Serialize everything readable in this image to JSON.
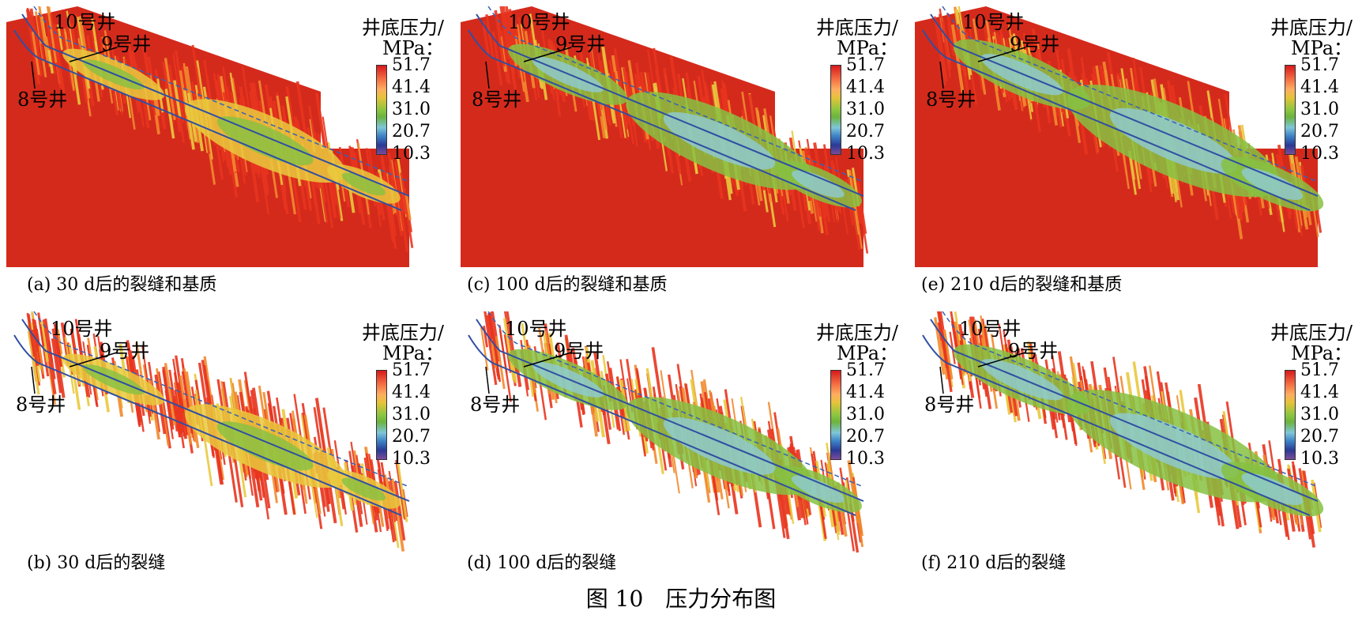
{
  "figure_title": "图 10　压力分布图",
  "legend": {
    "title_line1": "井底压力/",
    "title_line2": "MPa：",
    "ticks": [
      "51.7",
      "41.4",
      "31.0",
      "20.7",
      "10.3"
    ]
  },
  "wells": {
    "w10": "10号井",
    "w9": "9号井",
    "w8": "8号井"
  },
  "panels": [
    {
      "id": "a",
      "caption": "(a) 30 d后的裂缝和基质",
      "has_matrix": true,
      "stage": 0
    },
    {
      "id": "c",
      "caption": "(c) 100 d后的裂缝和基质",
      "has_matrix": true,
      "stage": 1
    },
    {
      "id": "e",
      "caption": "(e) 210 d后的裂缝和基质",
      "has_matrix": true,
      "stage": 2
    },
    {
      "id": "b",
      "caption": "(b) 30 d后的裂缝",
      "has_matrix": false,
      "stage": 0
    },
    {
      "id": "d",
      "caption": "(d) 100 d后的裂缝",
      "has_matrix": false,
      "stage": 1
    },
    {
      "id": "f",
      "caption": "(f) 210 d后的裂缝",
      "has_matrix": false,
      "stage": 2
    }
  ],
  "colors": {
    "matrix_red": "#d42a1c",
    "high": "#e8351f",
    "orange": "#f28a2e",
    "yellow": "#e9c93d",
    "green": "#86c142",
    "light_blue": "#8fcbd6",
    "blue": "#3563b8",
    "well_line": "#2f4fa3"
  }
}
